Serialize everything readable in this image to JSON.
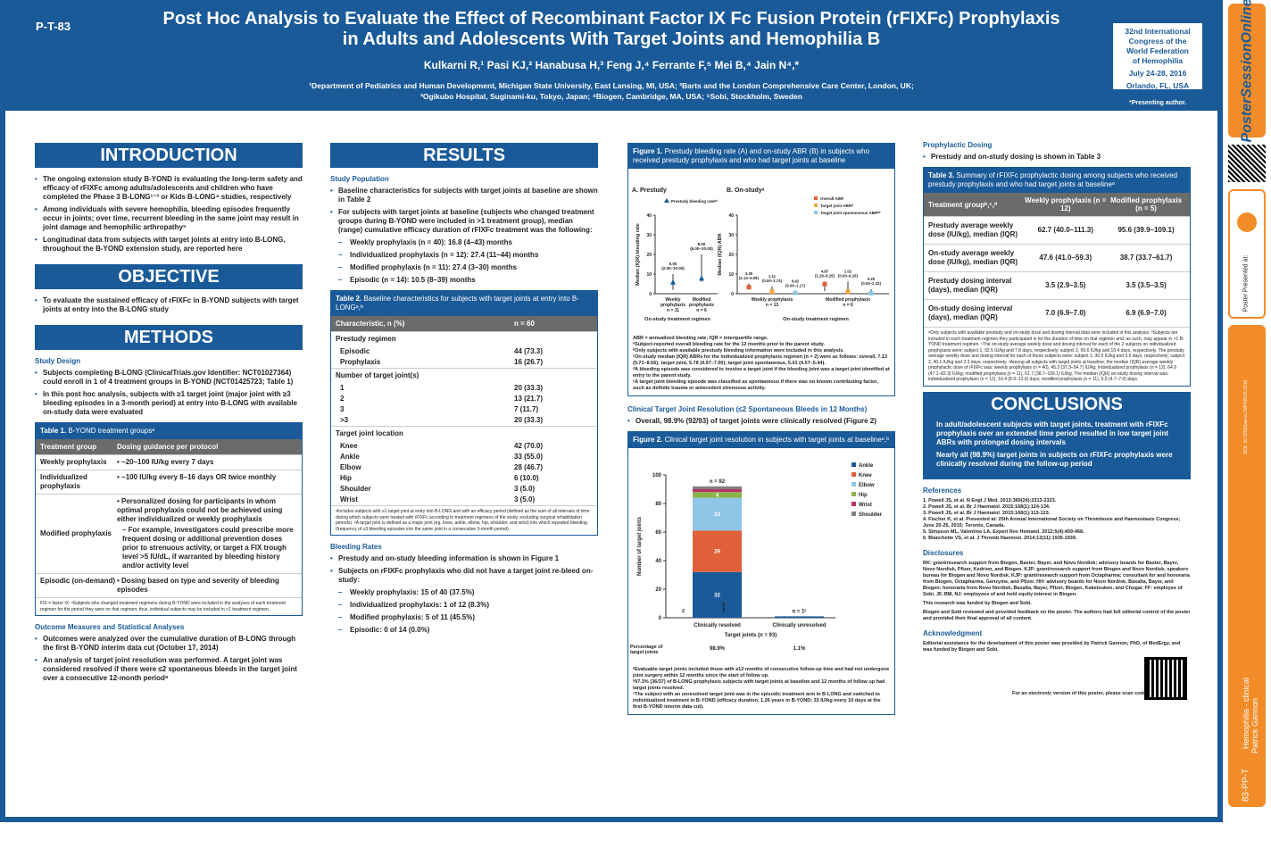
{
  "header": {
    "code": "P-T-83",
    "title": "Post Hoc Analysis to Evaluate the Effect of Recombinant Factor IX Fc Fusion Protein (rFIXFc) Prophylaxis in Adults and Adolescents With Target Joints and Hemophilia B",
    "authors": "Kulkarni R,¹ Pasi KJ,² Hanabusa H,³ Feng J,⁴ Ferrante F,⁵ Mei B,⁴ Jain N⁴,*",
    "affil1": "¹Department of Pediatrics and Human Development, Michigan State University, East Lansing, MI, USA; ²Barts and the London Comprehensive Care Center, London, UK;",
    "affil2": "³Ogikubo Hospital, Suginami-ku, Tokyo, Japan; ⁴Biogen, Cambridge, MA, USA; ⁵Sobi, Stockholm, Sweden",
    "congress": [
      "32nd International",
      "Congress of the",
      "World Federation",
      "of Hemophilia"
    ],
    "dates": "July 24-28, 2016",
    "place": "Orlando, FL, USA",
    "presenting": "*Presenting author."
  },
  "intro": {
    "heading": "INTRODUCTION",
    "bullets": [
      "The ongoing extension study B-YOND is evaluating the long-term safety and efficacy of rFIXFc among adults/adolescents and children who have completed the Phase 3 B-LONG¹⁻³ or Kids B-LONG⁴ studies, respectively",
      "Among individuals with severe hemophilia, bleeding episodes frequently occur in joints; over time, recurrent bleeding in the same joint may result in joint damage and hemophilic arthropathy⁵",
      "Longitudinal data from subjects with target joints at entry into B-LONG, throughout the B-YOND extension study, are reported here"
    ]
  },
  "objective": {
    "heading": "OBJECTIVE",
    "bullets": [
      "To evaluate the sustained efficacy of rFIXFc in B-YOND subjects with target joints at entry into the B-LONG study"
    ]
  },
  "methods": {
    "heading": "METHODS",
    "design_title": "Study Design",
    "bullets": [
      "Subjects completing B-LONG (ClinicalTrials.gov Identifier: NCT01027364) could enroll in 1 of 4 treatment groups in B-YOND (NCT01425723; Table 1)",
      "In this post hoc analysis, subjects with ≥1 target joint (major joint with ≥3 bleeding episodes in a 3-month period) at entry into B-LONG with available on-study data were evaluated"
    ],
    "table1": {
      "caption_bold": "Table 1.",
      "caption": " B-YOND treatment groupsᵃ",
      "head": [
        "Treatment group",
        "Dosing guidance per protocol"
      ],
      "rows": [
        [
          "Weekly prophylaxis",
          "• ~20–100 IU/kg every 7 days"
        ],
        [
          "Individualized prophylaxis",
          "• ~100 IU/kg every 8–16 days OR twice monthly"
        ],
        [
          "Modified prophylaxis",
          "• Personalized dosing for participants in whom optimal prophylaxis could not be achieved using either individualized or weekly prophylaxis"
        ],
        [
          "Episodic (on-demand)",
          "• Dosing based on type and severity of bleeding episodes"
        ]
      ],
      "modified_sub": "– For example, investigators could prescribe more frequent dosing or additional prevention doses prior to strenuous activity, or target a FIX trough level >5 IU/dL, if warranted by bleeding history and/or activity level",
      "foot": "FIX = factor IX. ᵃSubjects who changed treatment regimens during B-YOND were included in the analyses of each treatment regimen for the period they were on that regimen; thus, individual subjects may be included in >1 treatment regimen."
    },
    "outcome_title": "Outcome Measures and Statistical Analyses",
    "outcome_bullets": [
      "Outcomes were analyzed over the cumulative duration of B-LONG through the first B-YOND interim data cut (October 17, 2014)",
      "An analysis of target joint resolution was performed. A target joint was considered resolved if there were ≤2 spontaneous bleeds in the target joint over a consecutive 12-month period⁶"
    ]
  },
  "results": {
    "heading": "RESULTS",
    "pop_title": "Study Population",
    "pop_bullets": [
      "Baseline characteristics for subjects with target joints at baseline are shown in Table 2",
      "For subjects with target joints at baseline (subjects who changed treatment groups during B-YOND were included in >1 treatment group), median (range) cumulative efficacy duration of rFIXFc treatment was the following:"
    ],
    "pop_dash": [
      "Weekly prophylaxis (n = 40): 16.8 (4–43) months",
      "Individualized prophylaxis (n = 12): 27.4 (11–44) months",
      "Modified prophylaxis (n = 11): 27.4 (3–30) months",
      "Episodic (n = 14): 10.5 (8–39) months"
    ],
    "table2": {
      "caption_bold": "Table 2.",
      "caption": " Baseline characteristics for subjects with target joints at entry into B-LONGᵃ,ᵇ",
      "head": [
        "Characteristic, n (%)",
        "n = 60"
      ],
      "groups": [
        {
          "title": "Prestudy regimen",
          "rows": [
            [
              "Episodic",
              "44 (73.3)"
            ],
            [
              "Prophylaxis",
              "16 (26.7)"
            ]
          ]
        },
        {
          "title": "Number of target joint(s)",
          "rows": [
            [
              "1",
              "20 (33.3)"
            ],
            [
              "2",
              "13 (21.7)"
            ],
            [
              "3",
              "7 (11.7)"
            ],
            [
              ">3",
              "20 (33.3)"
            ]
          ]
        },
        {
          "title": "Target joint location",
          "rows": [
            [
              "Knee",
              "42 (70.0)"
            ],
            [
              "Ankle",
              "33 (55.0)"
            ],
            [
              "Elbow",
              "28 (46.7)"
            ],
            [
              "Hip",
              "6 (10.0)"
            ],
            [
              "Shoulder",
              "3 (5.0)"
            ],
            [
              "Wrist",
              "3 (5.0)"
            ]
          ]
        }
      ],
      "foot": "ᵃIncludes subjects with ≥1 target joint at entry into B-LONG and with an efficacy period (defined as the sum of all intervals of time during which subjects were treated with rFIXFc according to treatment regimens of the study, excluding surgical rehabilitation periods). ᵇA target joint is defined as a major joint (eg, knee, ankle, elbow, hip, shoulder, and wrist) into which repeated bleeding (frequency of ≥3 bleeding episodes into the same joint in a consecutive 3-month period)."
    },
    "bleed_title": "Bleeding Rates",
    "bleed_bullets": [
      "Prestudy and on-study bleeding information is shown in Figure 1",
      "Subjects on rFIXFc prophylaxis who did not have a target joint re-bleed on-study:"
    ],
    "bleed_dash": [
      "Weekly prophylaxis: 15 of 40 (37.5%)",
      "Individualized prophylaxis: 1 of 12 (8.3%)",
      "Modified prophylaxis: 5 of 11 (45.5%)",
      "Episodic: 0 of 14 (0.0%)"
    ]
  },
  "figure1": {
    "caption_bold": "Figure 1.",
    "caption": " Prestudy bleeding rate (A) and on-study ABR (B) in subjects who received prestudy prophylaxis and who had target joints at baseline",
    "panelA": "A.  Prestudy",
    "panelB": "B.  On-studyᵃ",
    "ylabelA": "Median (IQR) bleeding rate",
    "ylabelB": "Median (IQR) ABR",
    "legendA": "Prestudy bleeding rateᵇᶜ",
    "legendB": [
      "Overall ABR",
      "Target joint ABRᵈ",
      "Target joint spontaneous ABRᵈᵉ"
    ],
    "xlabel": "On-study treatment regimen",
    "groupsA": [
      "Weekly prophylaxis n = 11",
      "Modified prophylaxis n = 6"
    ],
    "groupsB": [
      "Weekly prophylaxis n = 13",
      "Modified prophylaxis n = 6"
    ],
    "labelsA": [
      "6.00 (2.00–10.00)",
      "8.00 (6.00–20.00)"
    ],
    "labelsB": [
      "3.35 (2.13–5.09)",
      "1.11 (0.00–3.74)",
      "0.42 (0.00–1.17)",
      "4.87 (1.29–6.25)",
      "1.02 (0.00–6.16)",
      "0.20 (0.00–2.32)"
    ],
    "foot": [
      "ABR = annualized bleeding rate; IQR = interquartile range.",
      "ᵃSubject-reported overall bleeding rate for the 12 months prior to the parent study.",
      "ᵇOnly subjects with available prestudy bleeding information were included in this analysis.",
      "ᶜOn-study median (IQR) ABRs for the individualized prophylaxis regimen (n = 2) were as follows: overall, 7.13 (5.71–8.56); target joint, 5.78 (4.57–7.00); target joint spontaneous, 5.01 (4.57–5.44).",
      "ᵈA bleeding episode was considered to involve a target joint if the bleeding joint was a target joint identified at entry to the parent study.",
      "ᵉA target joint bleeding episode was classified as spontaneous if there was no known contributing factor, such as definite trauma or antecedent strenuous activity."
    ]
  },
  "clinical": {
    "title": "Clinical Target Joint Resolution (≤2 Spontaneous Bleeds in 12 Months)",
    "bullet": "Overall, 98.9% (92/93) of target joints were clinically resolved (Figure 2)"
  },
  "figure2": {
    "caption_bold": "Figure 2.",
    "caption": " Clinical target joint resolution in subjects with target joints at baselineᵃ,ᵇ",
    "foot": [
      "ᵃEvaluable target joints included those with ≥12 months of consecutive follow-up time and had not undergone joint surgery within 12 months since the start of follow up.",
      "ᵇ97.3% (36/37) of B-LONG prophylaxis subjects with target joints at baseline and 12 months of follow up had target joints resolved.",
      "ᶜThe subject with an unresolved target joint was in the episodic treatment arm in B-LONG and switched to individualized treatment in B-YOND (efficacy duration, 1.26 years in B-YOND; 33 IU/kg every 10 days at the first B-YOND interim data cut)."
    ]
  },
  "chart_data": {
    "type": "bar",
    "categories": [
      "Clinically resolved",
      "Clinically unresolved"
    ],
    "series": [
      {
        "name": "Ankle",
        "values": [
          32,
          1
        ],
        "color": "#1a5a98"
      },
      {
        "name": "Knee",
        "values": [
          29,
          0
        ],
        "color": "#e0603a"
      },
      {
        "name": "Elbow",
        "values": [
          23,
          0
        ],
        "color": "#8fc6e8"
      },
      {
        "name": "Hip",
        "values": [
          4,
          0
        ],
        "color": "#8ab34a"
      },
      {
        "name": "Wrist",
        "values": [
          2,
          0
        ],
        "color": "#b8336a"
      },
      {
        "name": "Shoulder",
        "values": [
          2,
          0
        ],
        "color": "#808080"
      }
    ],
    "totals": [
      "n = 92",
      "n = 1ᶜ"
    ],
    "ylabel": "Number of target joints",
    "xlabel": "Target joints (n = 93)",
    "ylim": [
      0,
      100
    ],
    "yticks": [
      0,
      20,
      40,
      60,
      80,
      100
    ],
    "pct_label": "Percentage of target joints",
    "pct_values": [
      "98.9%",
      "1.1%"
    ]
  },
  "dosing": {
    "title": "Prophylactic Dosing",
    "bullet": "Prestudy and on-study dosing is shown in Table 3",
    "table3": {
      "caption_bold": "Table 3.",
      "caption": " Summary of rFIXFc prophylactic dosing among subjects who received prestudy prophylaxis and who had target joints at baselineᵃ",
      "head": [
        "Treatment groupᵇ,ᶜ,ᵈ",
        "Weekly prophylaxis (n = 12)",
        "Modified prophylaxis (n = 5)"
      ],
      "rows": [
        [
          "Prestudy average weekly dose (IU/kg), median (IQR)",
          "62.7 (40.0–111.3)",
          "95.6 (39.9–109.1)"
        ],
        [
          "On-study average weekly dose (IU/kg), median (IQR)",
          "47.6 (41.0–59.3)",
          "38.7 (33.7–61.7)"
        ],
        [
          "Prestudy dosing interval (days), median (IQR)",
          "3.5 (2.9–3.5)",
          "3.5 (3.5–3.5)"
        ],
        [
          "On-study dosing interval (days), median (IQR)",
          "7.0 (6.9–7.0)",
          "6.9 (6.9–7.0)"
        ]
      ],
      "foot": "ᵃOnly subjects with available prestudy and on-study dose and dosing interval data were included in this analysis. ᵇSubjects are included in each treatment regimen they participated in for the duration of time on that regimen and, as such, may appear in >1 B-YOND treatment regimen. ᶜThe on-study average weekly dose and dosing interval for each of the 2 subjects on individualized prophylaxis were: subject 1, 92.5 IU/kg and 7.8 days, respectively; subject 2, 69.6 IU/kg and 10.4 days, respectively. The prestudy average weekly dose and dosing interval for each of these subjects were: subject 1, 30.0 IU/kg and 3.5 days, respectively; subject 2, 40.1 IU/kg and 2.3 days, respectively. ᵈAmong all subjects with target joints at baseline, the median (IQR) average weekly prophylactic dose of rFIXFc was: weekly prophylaxis (n = 40), 45.3 (37.3–54.7) IU/kg; individualized prophylaxis (n = 12), 64.9 (47.1–82.3) IU/kg; modified prophylaxis (n = 11), 61.7 (38.7–109.1) IU/kg. The median (IQR) on-study dosing interval was: individualized prophylaxis (n = 12), 10.4 (8.9–13.0) days; modified prophylaxis (n = 11), 6.5 (4.7–7.0) days."
    }
  },
  "conclusions": {
    "heading": "CONCLUSIONS",
    "bullets": [
      "In adult/adolescent subjects with target joints, treatment with rFIXFc prophylaxis over an extended time period resulted in low target joint ABRs with prolonged dosing intervals",
      "Nearly all (98.9%) target joints in subjects on rFIXFc prophylaxis were clinically resolved during the follow-up period"
    ]
  },
  "references": {
    "title": "References",
    "items": [
      "1. Powell JS, et al. N Engl J Med. 2013;369(24):2313-2323.",
      "2. Powell JS, et al. Br J Haematol. 2015;168(1):124-134.",
      "3. Powell JS, et al. Br J Haematol. 2015;168(1):113-123.",
      "4. Fischer K, et al. Presented at: 25th Annual International Society on Thrombosis and Haemostasis Congress; June 20-25, 2015; Toronto, Canada.",
      "5. Simpson ML, Valentino LA. Expert Rev Hematol. 2012;5(4):459-468.",
      "6. Blanchette VS, et al. J Thromb Haemost. 2014;12(11):1935-1939."
    ]
  },
  "disclosures": {
    "title": "Disclosures",
    "text": "RK: grant/research support from Biogen, Baxter, Bayer, and Novo Nordisk; advisory boards for Baxter, Bayer, Novo Nordisk, Pfizer, Kedrion, and Biogen. KJP: grant/research support from Biogen and Novo Nordisk; speakers bureau for Biogen and Novo Nordisk. KJP: grant/research support from Octapharma; consultant for and honoraria from Biogen, Octapharma, Genzyme, and Pfizer. HH: advisory boards for Novo Nordisk, Baxalta, Bayer, and Biogen; honoraria from Novo Nordisk, Baxalta, Bayer, Pfizer, Biogen, Kaketsuken, and Chugai. FF: employee of Sobi. JF, BM, NJ: employees of and hold equity interest in Biogen.",
    "funded": "This research was funded by Biogen and Sobi.",
    "review": "Biogen and Sobi reviewed and provided feedback on the poster. The authors had full editorial control of the poster and provided their final approval of all content."
  },
  "ack": {
    "title": "Acknowledgment",
    "text": "Editorial assistance for the development of this poster was provided by Patrick Gannon, PhD, of MedErgy, and was funded by Biogen and Sobi."
  },
  "electronic": "For an electronic version of this poster, please scan code.",
  "sidebar": {
    "brand": "PosterSessionOnline",
    "presented": "Presented at:",
    "poster": "Poster",
    "author": "Patrick Gannon",
    "topic": "Hemophilia - clinical",
    "code": "83-PP-T",
    "doi": "DOI: 10.3252/pso.eu.WFH2016.2016"
  }
}
